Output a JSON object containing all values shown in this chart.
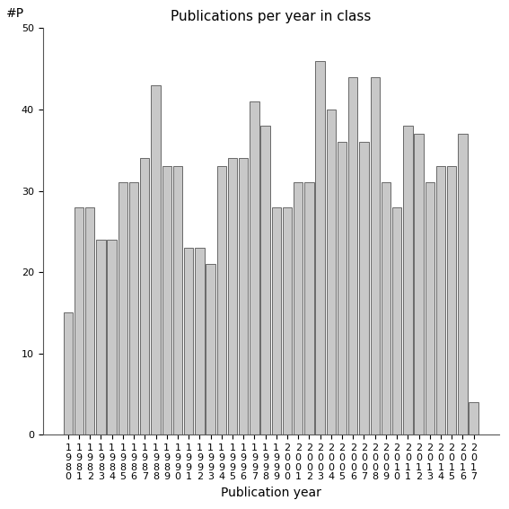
{
  "title": "Publications per year in class",
  "xlabel": "Publication year",
  "ylabel": "#P",
  "categories": [
    "1980",
    "1981",
    "1982",
    "1983",
    "1984",
    "1985",
    "1986",
    "1987",
    "1988",
    "1989",
    "1990",
    "1991",
    "1992",
    "1993",
    "1994",
    "1995",
    "1996",
    "1997",
    "1998",
    "1999",
    "2000",
    "2001",
    "2002",
    "2003",
    "2004",
    "2005",
    "2006",
    "2007",
    "2008",
    "2009",
    "2010",
    "2011",
    "2012",
    "2013",
    "2014",
    "2015",
    "2016",
    "2017"
  ],
  "values": [
    15,
    28,
    28,
    24,
    24,
    31,
    31,
    34,
    43,
    33,
    33,
    23,
    23,
    21,
    33,
    34,
    34,
    41,
    38,
    28,
    28,
    31,
    31,
    46,
    40,
    36,
    44,
    36,
    44,
    31,
    28,
    38,
    37,
    31,
    33,
    33,
    37,
    4
  ],
  "bar_color": "#c8c8c8",
  "bar_edgecolor": "#555555",
  "ylim": [
    0,
    50
  ],
  "yticks": [
    0,
    10,
    20,
    30,
    40,
    50
  ],
  "background_color": "#ffffff",
  "figsize": [
    5.67,
    5.67
  ],
  "dpi": 100,
  "title_fontsize": 11,
  "axis_label_fontsize": 10,
  "tick_fontsize": 8,
  "bar_linewidth": 0.6
}
